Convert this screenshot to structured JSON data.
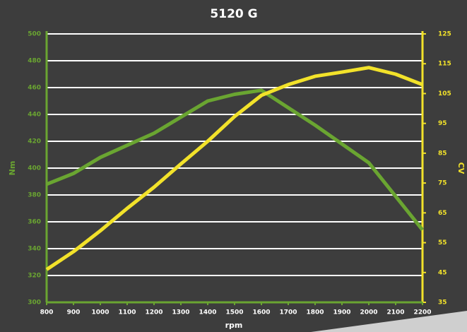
{
  "chart_data": {
    "type": "line",
    "title": "5120 G",
    "xlabel": "rpm",
    "ylabel": "Nm",
    "y2label": "CV",
    "x": [
      800,
      900,
      1000,
      1100,
      1200,
      1300,
      1400,
      1500,
      1600,
      1700,
      1800,
      1900,
      2000,
      2100,
      2200
    ],
    "xlim": [
      800,
      2200
    ],
    "xticks": [
      800,
      900,
      1000,
      1100,
      1200,
      1300,
      1400,
      1500,
      1600,
      1700,
      1800,
      1900,
      2000,
      2100,
      2200
    ],
    "ylim": [
      300,
      500
    ],
    "yticks": [
      300,
      320,
      340,
      360,
      380,
      400,
      420,
      440,
      460,
      480,
      500
    ],
    "y2lim": [
      35,
      125
    ],
    "y2ticks": [
      35,
      45,
      55,
      65,
      75,
      85,
      95,
      105,
      115,
      125
    ],
    "grid": true,
    "series": [
      {
        "name": "Nm",
        "color": "#6aa531",
        "axis": "y",
        "values": [
          388,
          396,
          408,
          417,
          426,
          438,
          450,
          455,
          458,
          445,
          432,
          418,
          404,
          379,
          354
        ]
      },
      {
        "name": "CV",
        "color": "#f2e22a",
        "axis": "y2",
        "values": [
          46,
          52,
          59,
          66.5,
          73.6,
          81.4,
          89,
          97.3,
          104.4,
          108,
          110.8,
          112.2,
          113.7,
          111.5,
          108
        ]
      }
    ]
  }
}
